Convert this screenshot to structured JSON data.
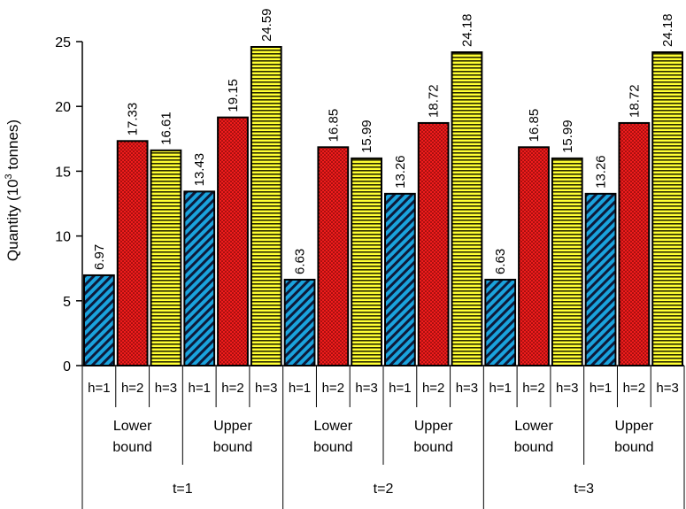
{
  "chart_data": {
    "type": "bar",
    "ylabel": "Quantity (10",
    "ylabel_sup": "3",
    "ylabel_tail": " tonnes)",
    "ylim": [
      0,
      25
    ],
    "yticks": [
      "0",
      "5",
      "10",
      "15",
      "20",
      "25"
    ],
    "grid": false,
    "levels": {
      "h": [
        "h=1",
        "h=2",
        "h=3"
      ],
      "bound": [
        [
          "Lower",
          "bound"
        ],
        [
          "Upper",
          "bound"
        ]
      ],
      "t": [
        "t=1",
        "t=2",
        "t=3"
      ]
    },
    "values": [
      6.97,
      17.33,
      16.61,
      13.43,
      19.15,
      24.59,
      6.63,
      16.85,
      15.99,
      13.26,
      18.72,
      24.18,
      6.63,
      16.85,
      15.99,
      13.26,
      18.72,
      24.18
    ],
    "value_labels": [
      "6.97",
      "17.33",
      "16.61",
      "13.43",
      "19.15",
      "24.59",
      "6.63",
      "16.85",
      "15.99",
      "13.26",
      "18.72",
      "24.18",
      "6.63",
      "16.85",
      "15.99",
      "13.26",
      "18.72",
      "24.18"
    ],
    "series_styles": [
      {
        "h": "h=1",
        "color": "#1aa3dd",
        "pattern": "diagonal-stripes"
      },
      {
        "h": "h=2",
        "color": "#ee1c1c",
        "pattern": "dots"
      },
      {
        "h": "h=3",
        "color": "#ffff33",
        "pattern": "horizontal-stripes"
      }
    ]
  }
}
